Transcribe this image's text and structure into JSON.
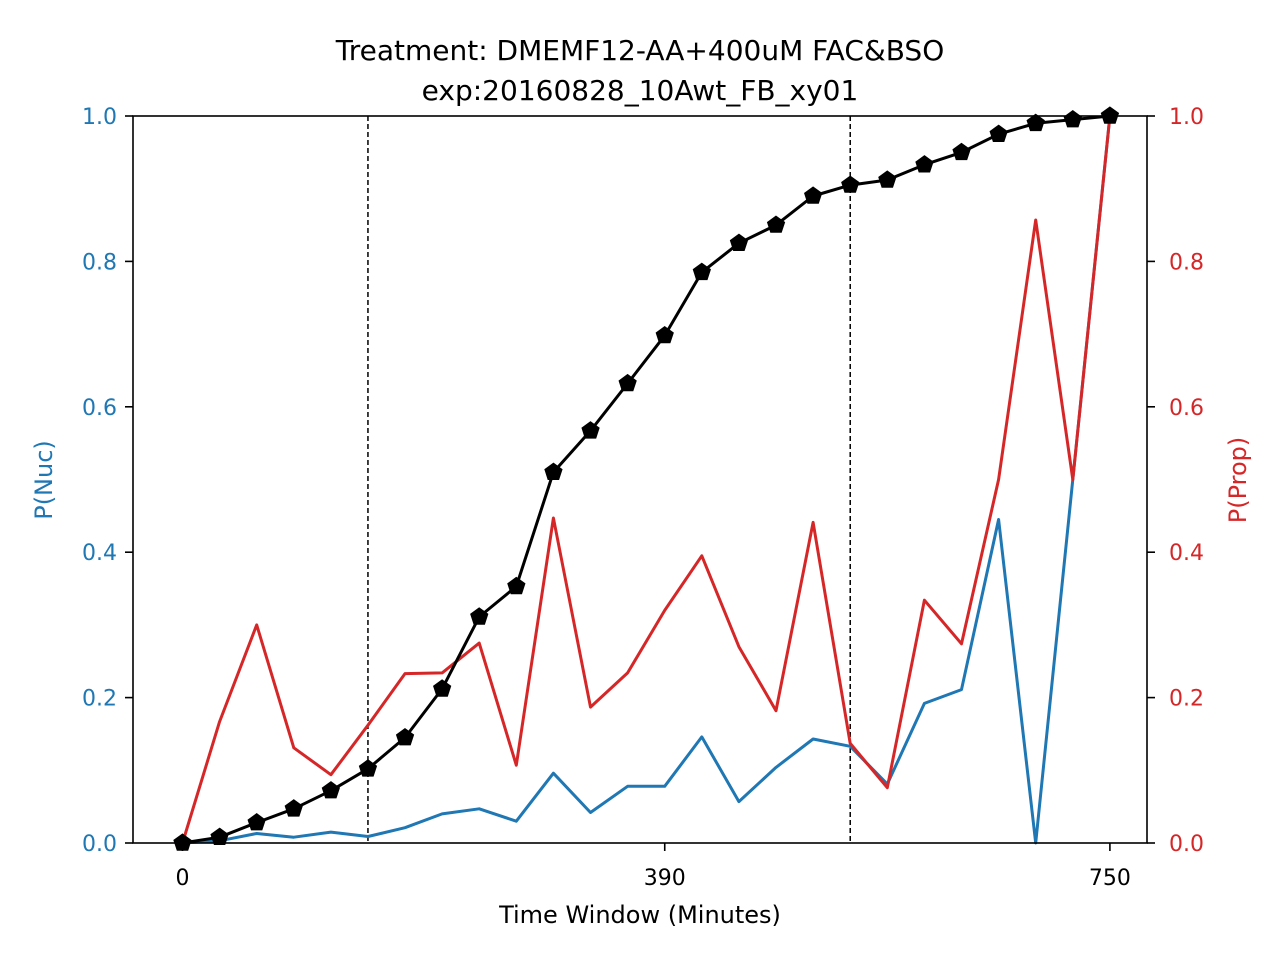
{
  "chart_data": {
    "type": "line",
    "title": [
      "Treatment: DMEMF12-AA+400uM FAC&BSO",
      "exp:20160828_10Awt_FB_xy01"
    ],
    "xlabel": "Time Window (Minutes)",
    "ylabel_left": "P(Nuc)",
    "ylabel_right": "P(Prop)",
    "xlim": [
      -40,
      780
    ],
    "ylim_left": [
      0,
      1
    ],
    "ylim_right": [
      0,
      1
    ],
    "x_ticks": [
      0,
      390,
      750
    ],
    "y_ticks_left": [
      0.0,
      0.2,
      0.4,
      0.6,
      0.8,
      1.0
    ],
    "y_ticks_right": [
      0.0,
      0.2,
      0.4,
      0.6,
      0.8,
      1.0
    ],
    "vlines": [
      150,
      540
    ],
    "grid": false,
    "colors": {
      "left_axis": "#1f77b4",
      "right_axis": "#d62728",
      "cumulative": "#000000"
    },
    "x": [
      0,
      30,
      60,
      90,
      120,
      150,
      180,
      210,
      240,
      270,
      300,
      330,
      360,
      390,
      420,
      450,
      480,
      510,
      540,
      570,
      600,
      630,
      660,
      690,
      720,
      750
    ],
    "series": [
      {
        "axis": "left",
        "color": "#1f77b4",
        "marker": "none",
        "values": [
          0.0,
          0.003,
          0.013,
          0.008,
          0.015,
          0.009,
          0.021,
          0.04,
          0.047,
          0.03,
          0.096,
          0.042,
          0.078,
          0.078,
          0.146,
          0.057,
          0.104,
          0.143,
          0.133,
          0.081,
          0.192,
          0.211,
          0.445,
          0.0,
          0.5,
          1.0
        ]
      },
      {
        "axis": "right",
        "color": "#d62728",
        "marker": "none",
        "values": [
          0.0,
          0.167,
          0.3,
          0.131,
          0.094,
          0.162,
          0.233,
          0.234,
          0.275,
          0.107,
          0.447,
          0.187,
          0.234,
          0.32,
          0.395,
          0.27,
          0.182,
          0.441,
          0.137,
          0.076,
          0.334,
          0.274,
          0.5,
          0.857,
          0.5,
          1.0
        ]
      },
      {
        "axis": "left",
        "color": "#000000",
        "marker": "pentagon",
        "values": [
          0.0,
          0.008,
          0.028,
          0.047,
          0.072,
          0.102,
          0.145,
          0.212,
          0.311,
          0.353,
          0.51,
          0.567,
          0.632,
          0.698,
          0.785,
          0.825,
          0.85,
          0.89,
          0.905,
          0.912,
          0.933,
          0.95,
          0.975,
          0.99,
          0.995,
          1.0
        ]
      }
    ]
  }
}
